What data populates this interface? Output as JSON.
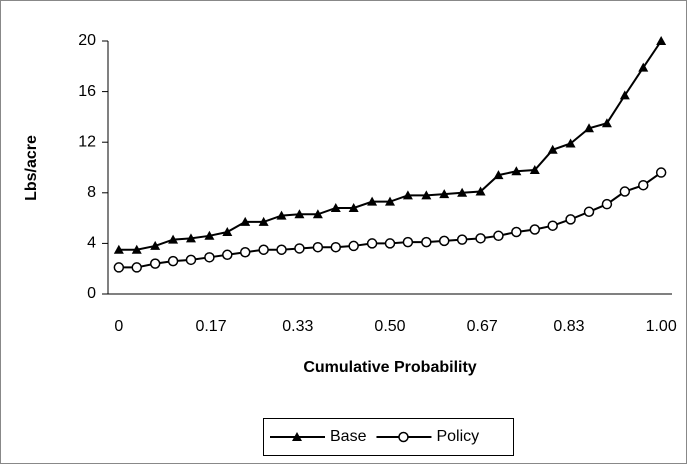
{
  "chart_data": {
    "type": "line",
    "ylabel": "Lbs/acre",
    "xlabel": "Cumulative Probability",
    "x": [
      0,
      0.033,
      0.067,
      0.1,
      0.133,
      0.167,
      0.2,
      0.233,
      0.267,
      0.3,
      0.333,
      0.367,
      0.4,
      0.433,
      0.467,
      0.5,
      0.533,
      0.567,
      0.6,
      0.633,
      0.667,
      0.7,
      0.733,
      0.767,
      0.8,
      0.833,
      0.867,
      0.9,
      0.933,
      0.967,
      1.0
    ],
    "series": [
      {
        "name": "Base",
        "color": "#000000",
        "marker": "triangle",
        "values": [
          3.5,
          3.5,
          3.8,
          4.3,
          4.4,
          4.6,
          4.9,
          5.7,
          5.7,
          6.2,
          6.3,
          6.3,
          6.8,
          6.8,
          7.3,
          7.3,
          7.8,
          7.8,
          7.9,
          8.0,
          8.1,
          9.4,
          9.7,
          9.8,
          11.4,
          11.9,
          13.1,
          13.5,
          15.7,
          17.9,
          20.0
        ]
      },
      {
        "name": "Policy",
        "color": "#000000",
        "marker": "circle",
        "values": [
          2.1,
          2.1,
          2.4,
          2.6,
          2.7,
          2.9,
          3.1,
          3.3,
          3.5,
          3.5,
          3.6,
          3.7,
          3.7,
          3.8,
          4.0,
          4.0,
          4.1,
          4.1,
          4.2,
          4.3,
          4.4,
          4.6,
          4.9,
          5.1,
          5.4,
          5.9,
          6.5,
          7.1,
          8.1,
          8.6,
          9.6
        ]
      }
    ],
    "xlim": [
      -0.02,
      1.02
    ],
    "xticks": [
      0,
      0.17,
      0.33,
      {
        "value": 0.5,
        "label": "0.50"
      },
      0.67,
      0.83,
      {
        "value": 1,
        "label": "1.00"
      }
    ],
    "ylim": [
      0,
      20
    ],
    "yticks": [
      0,
      4,
      8,
      12,
      16,
      20
    ],
    "grid": false,
    "legend": "bottom"
  }
}
